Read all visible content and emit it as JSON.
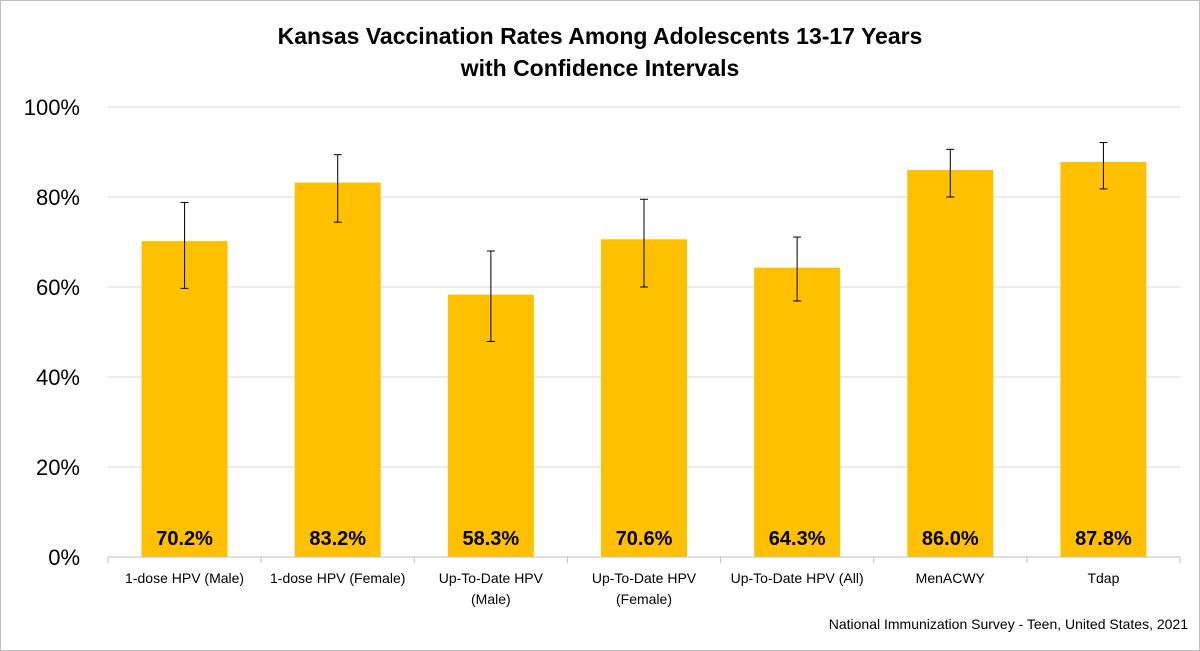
{
  "chart_data": {
    "type": "bar",
    "title": [
      "Kansas Vaccination Rates Among Adolescents 13-17 Years",
      "with Confidence Intervals"
    ],
    "categories": [
      [
        "1-dose HPV (Male)"
      ],
      [
        "1-dose HPV (Female)"
      ],
      [
        "Up-To-Date HPV",
        "(Male)"
      ],
      [
        "Up-To-Date HPV",
        "(Female)"
      ],
      [
        "Up-To-Date HPV (All)"
      ],
      [
        "MenACWY"
      ],
      [
        "Tdap"
      ]
    ],
    "values": [
      70.2,
      83.2,
      58.3,
      70.6,
      64.3,
      86.0,
      87.8
    ],
    "data_labels": [
      "70.2%",
      "83.2%",
      "58.3%",
      "70.6%",
      "64.3%",
      "86.0%",
      "87.8%"
    ],
    "error_low": [
      59.7,
      74.4,
      47.9,
      60.0,
      56.9,
      80.0,
      81.8
    ],
    "error_high": [
      78.8,
      89.4,
      68.0,
      79.5,
      71.1,
      90.6,
      92.1
    ],
    "ylim": [
      0,
      100
    ],
    "yticks": [
      0,
      20,
      40,
      60,
      80,
      100
    ],
    "ytick_labels": [
      "0%",
      "20%",
      "40%",
      "60%",
      "80%",
      "100%"
    ],
    "grid": true,
    "bar_color": "#FFC000",
    "error_bar_color": "#000000",
    "gridline_color": "#d9d9d9"
  },
  "source_note": "National Immunization Survey - Teen, United States, 2021"
}
